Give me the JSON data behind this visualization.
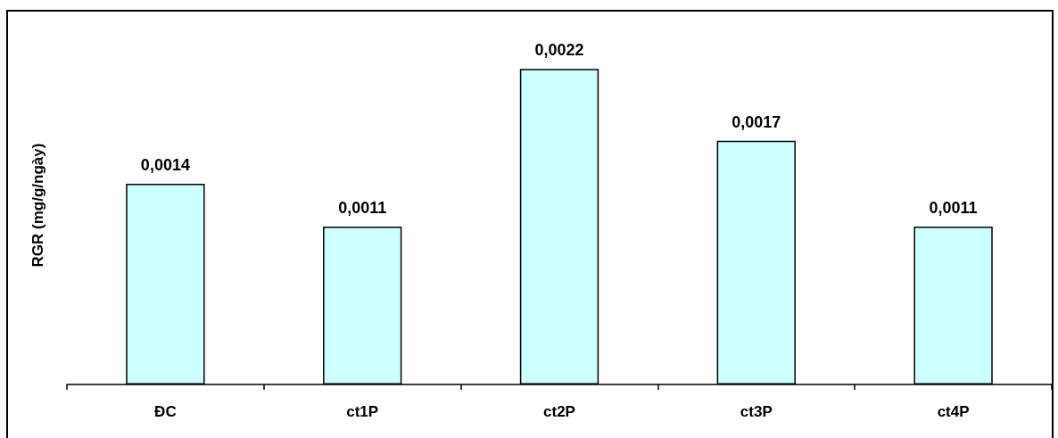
{
  "chart_data": {
    "type": "bar",
    "ylabel": "RGR (mg/g/ngày)",
    "categories": [
      "ĐC",
      "ct1P",
      "ct2P",
      "ct3P",
      "ct4P"
    ],
    "values": [
      0.0014,
      0.0011,
      0.0022,
      0.0017,
      0.0011
    ],
    "color": "#ccffff",
    "value_labels": [
      "0,0014",
      "0,0011",
      "0,0022",
      "0,0017",
      "0,0011"
    ],
    "tick_labels": "x"
  }
}
